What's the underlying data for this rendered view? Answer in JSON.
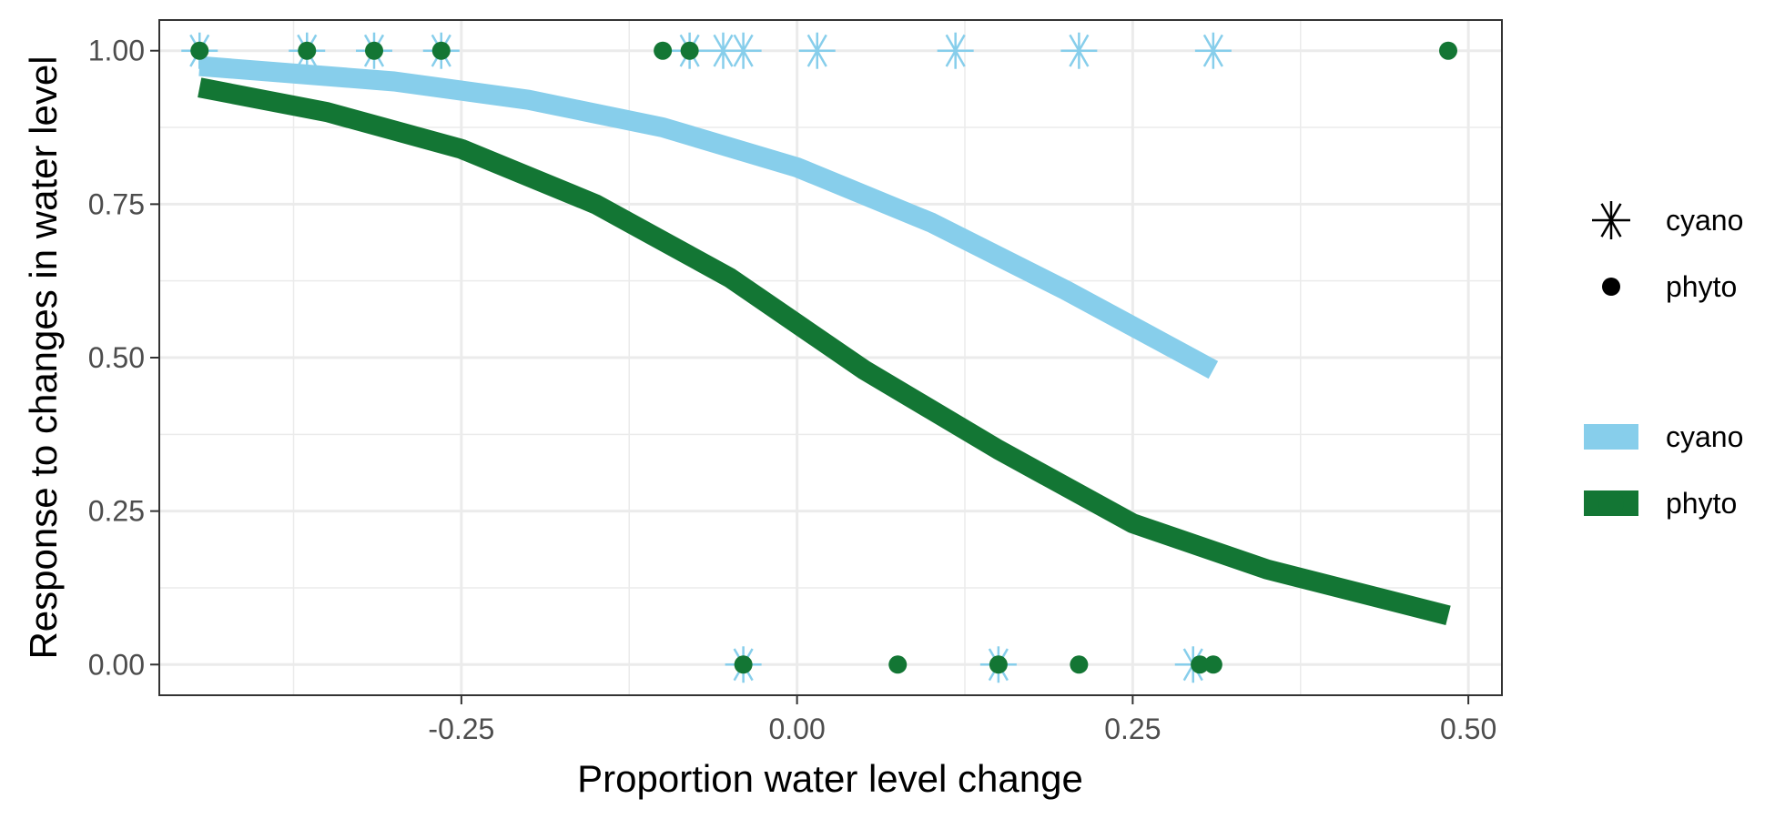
{
  "chart_data": {
    "type": "scatter",
    "title": "",
    "xlabel": "Proportion water level change",
    "ylabel": "Response to changes in water level",
    "xlim": [
      -0.475,
      0.525
    ],
    "ylim": [
      -0.05,
      1.05
    ],
    "x_ticks": [
      -0.25,
      0.0,
      0.25,
      0.5
    ],
    "x_tick_labels": [
      "-0.25",
      "0.00",
      "0.25",
      "0.50"
    ],
    "y_ticks": [
      0.0,
      0.25,
      0.5,
      0.75,
      1.0
    ],
    "y_tick_labels": [
      "0.00",
      "0.25",
      "0.50",
      "0.75",
      "1.00"
    ],
    "grid": true,
    "legend_position": "right",
    "points": [
      {
        "name": "cyano",
        "color": "#87ceeb",
        "shape": "asterisk",
        "x": [
          -0.445,
          -0.365,
          -0.315,
          -0.265,
          -0.08,
          -0.055,
          -0.04,
          0.015,
          0.118,
          0.21,
          0.31,
          -0.04,
          0.15,
          0.295
        ],
        "y": [
          1,
          1,
          1,
          1,
          1,
          1,
          1,
          1,
          1,
          1,
          1,
          0,
          0,
          0
        ]
      },
      {
        "name": "phyto",
        "color": "#137634",
        "shape": "circle",
        "x": [
          -0.445,
          -0.365,
          -0.315,
          -0.265,
          -0.1,
          -0.08,
          0.485,
          -0.04,
          0.075,
          0.15,
          0.21,
          0.3,
          0.31
        ],
        "y": [
          1,
          1,
          1,
          1,
          1,
          1,
          1,
          0,
          0,
          0,
          0,
          0,
          0
        ]
      }
    ],
    "lines": [
      {
        "name": "cyano",
        "color": "#87ceeb",
        "x": [
          -0.445,
          -0.3,
          -0.2,
          -0.1,
          0.0,
          0.1,
          0.2,
          0.31
        ],
        "y": [
          0.975,
          0.95,
          0.92,
          0.875,
          0.81,
          0.72,
          0.61,
          0.48
        ]
      },
      {
        "name": "phyto",
        "color": "#137634",
        "x": [
          -0.445,
          -0.35,
          -0.25,
          -0.15,
          -0.05,
          0.05,
          0.15,
          0.25,
          0.35,
          0.485
        ],
        "y": [
          0.94,
          0.9,
          0.84,
          0.75,
          0.63,
          0.48,
          0.35,
          0.23,
          0.155,
          0.08
        ]
      }
    ],
    "legend": {
      "points": [
        {
          "label": "cyano",
          "shape": "asterisk"
        },
        {
          "label": "phyto",
          "shape": "circle"
        }
      ],
      "lines": [
        {
          "label": "cyano",
          "color": "#87ceeb"
        },
        {
          "label": "phyto",
          "color": "#137634"
        }
      ]
    }
  }
}
